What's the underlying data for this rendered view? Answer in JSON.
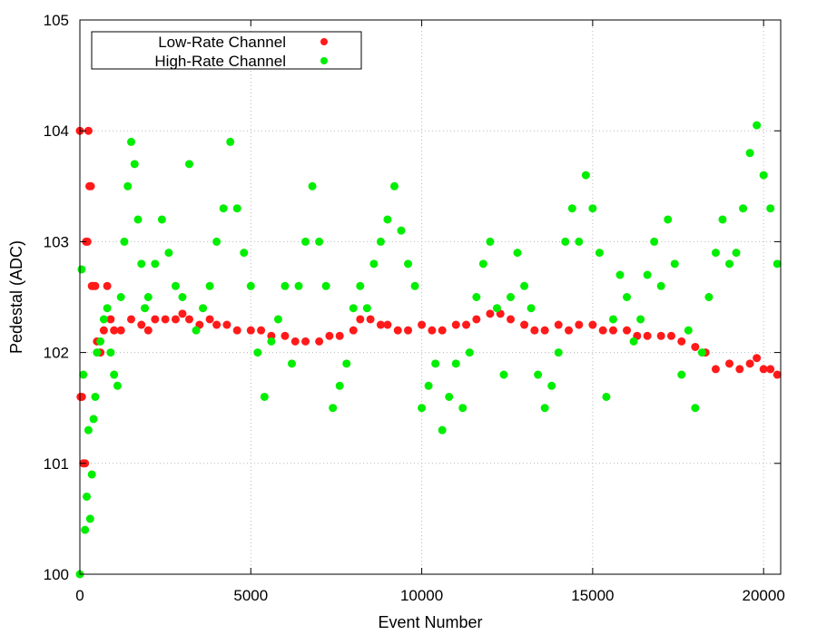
{
  "chart_data": {
    "type": "scatter",
    "xlabel": "Event Number",
    "ylabel": "Pedestal (ADC)",
    "xlim": [
      0,
      20500
    ],
    "ylim": [
      100,
      105
    ],
    "xticks": [
      "0",
      "5000",
      "10000",
      "15000",
      "20000"
    ],
    "yticks": [
      "100",
      "101",
      "102",
      "103",
      "104",
      "105"
    ],
    "grid": true,
    "legend_position": "top-left",
    "series": [
      {
        "name": "Low-Rate Channel",
        "color": "#ff1a1a",
        "points": [
          [
            0,
            104.0
          ],
          [
            20,
            101.6
          ],
          [
            60,
            101.6
          ],
          [
            100,
            101.0
          ],
          [
            150,
            101.0
          ],
          [
            180,
            103.0
          ],
          [
            220,
            103.0
          ],
          [
            250,
            104.0
          ],
          [
            280,
            103.5
          ],
          [
            320,
            103.5
          ],
          [
            350,
            102.6
          ],
          [
            400,
            102.6
          ],
          [
            450,
            102.6
          ],
          [
            500,
            102.1
          ],
          [
            600,
            102.0
          ],
          [
            700,
            102.2
          ],
          [
            800,
            102.6
          ],
          [
            900,
            102.3
          ],
          [
            1000,
            102.2
          ],
          [
            1200,
            102.2
          ],
          [
            1500,
            102.3
          ],
          [
            1800,
            102.25
          ],
          [
            2000,
            102.2
          ],
          [
            2200,
            102.3
          ],
          [
            2500,
            102.3
          ],
          [
            2800,
            102.3
          ],
          [
            3000,
            102.35
          ],
          [
            3200,
            102.3
          ],
          [
            3500,
            102.25
          ],
          [
            3800,
            102.3
          ],
          [
            4000,
            102.25
          ],
          [
            4300,
            102.25
          ],
          [
            4600,
            102.2
          ],
          [
            5000,
            102.2
          ],
          [
            5300,
            102.2
          ],
          [
            5600,
            102.15
          ],
          [
            6000,
            102.15
          ],
          [
            6300,
            102.1
          ],
          [
            6600,
            102.1
          ],
          [
            7000,
            102.1
          ],
          [
            7300,
            102.15
          ],
          [
            7600,
            102.15
          ],
          [
            8000,
            102.2
          ],
          [
            8200,
            102.3
          ],
          [
            8500,
            102.3
          ],
          [
            8800,
            102.25
          ],
          [
            9000,
            102.25
          ],
          [
            9300,
            102.2
          ],
          [
            9600,
            102.2
          ],
          [
            10000,
            102.25
          ],
          [
            10300,
            102.2
          ],
          [
            10600,
            102.2
          ],
          [
            11000,
            102.25
          ],
          [
            11300,
            102.25
          ],
          [
            11600,
            102.3
          ],
          [
            12000,
            102.35
          ],
          [
            12300,
            102.35
          ],
          [
            12600,
            102.3
          ],
          [
            13000,
            102.25
          ],
          [
            13300,
            102.2
          ],
          [
            13600,
            102.2
          ],
          [
            14000,
            102.25
          ],
          [
            14300,
            102.2
          ],
          [
            14600,
            102.25
          ],
          [
            15000,
            102.25
          ],
          [
            15300,
            102.2
          ],
          [
            15600,
            102.2
          ],
          [
            16000,
            102.2
          ],
          [
            16300,
            102.15
          ],
          [
            16600,
            102.15
          ],
          [
            17000,
            102.15
          ],
          [
            17300,
            102.15
          ],
          [
            17600,
            102.1
          ],
          [
            18000,
            102.05
          ],
          [
            18300,
            102.0
          ],
          [
            18600,
            101.85
          ],
          [
            19000,
            101.9
          ],
          [
            19300,
            101.85
          ],
          [
            19600,
            101.9
          ],
          [
            19800,
            101.95
          ],
          [
            20000,
            101.85
          ],
          [
            20200,
            101.85
          ],
          [
            20400,
            101.8
          ]
        ]
      },
      {
        "name": "High-Rate Channel",
        "color": "#00ee00",
        "points": [
          [
            0,
            100.0
          ],
          [
            50,
            102.75
          ],
          [
            100,
            101.8
          ],
          [
            150,
            100.4
          ],
          [
            200,
            100.7
          ],
          [
            250,
            101.3
          ],
          [
            300,
            100.5
          ],
          [
            350,
            100.9
          ],
          [
            400,
            101.4
          ],
          [
            450,
            101.6
          ],
          [
            500,
            102.0
          ],
          [
            600,
            102.1
          ],
          [
            700,
            102.3
          ],
          [
            800,
            102.4
          ],
          [
            900,
            102.0
          ],
          [
            1000,
            101.8
          ],
          [
            1100,
            101.7
          ],
          [
            1200,
            102.5
          ],
          [
            1300,
            103.0
          ],
          [
            1400,
            103.5
          ],
          [
            1500,
            103.9
          ],
          [
            1600,
            103.7
          ],
          [
            1700,
            103.2
          ],
          [
            1800,
            102.8
          ],
          [
            1900,
            102.4
          ],
          [
            2000,
            102.5
          ],
          [
            2200,
            102.8
          ],
          [
            2400,
            103.2
          ],
          [
            2600,
            102.9
          ],
          [
            2800,
            102.6
          ],
          [
            3000,
            102.5
          ],
          [
            3200,
            103.7
          ],
          [
            3400,
            102.2
          ],
          [
            3600,
            102.4
          ],
          [
            3800,
            102.6
          ],
          [
            4000,
            103.0
          ],
          [
            4200,
            103.3
          ],
          [
            4400,
            103.9
          ],
          [
            4600,
            103.3
          ],
          [
            4800,
            102.9
          ],
          [
            5000,
            102.6
          ],
          [
            5200,
            102.0
          ],
          [
            5400,
            101.6
          ],
          [
            5600,
            102.1
          ],
          [
            5800,
            102.3
          ],
          [
            6000,
            102.6
          ],
          [
            6200,
            101.9
          ],
          [
            6400,
            102.6
          ],
          [
            6600,
            103.0
          ],
          [
            6800,
            103.5
          ],
          [
            7000,
            103.0
          ],
          [
            7200,
            102.6
          ],
          [
            7400,
            101.5
          ],
          [
            7600,
            101.7
          ],
          [
            7800,
            101.9
          ],
          [
            8000,
            102.4
          ],
          [
            8200,
            102.6
          ],
          [
            8400,
            102.4
          ],
          [
            8600,
            102.8
          ],
          [
            8800,
            103.0
          ],
          [
            9000,
            103.2
          ],
          [
            9200,
            103.5
          ],
          [
            9400,
            103.1
          ],
          [
            9600,
            102.8
          ],
          [
            9800,
            102.6
          ],
          [
            10000,
            101.5
          ],
          [
            10200,
            101.7
          ],
          [
            10400,
            101.9
          ],
          [
            10600,
            101.3
          ],
          [
            10800,
            101.6
          ],
          [
            11000,
            101.9
          ],
          [
            11200,
            101.5
          ],
          [
            11400,
            102.0
          ],
          [
            11600,
            102.5
          ],
          [
            11800,
            102.8
          ],
          [
            12000,
            103.0
          ],
          [
            12200,
            102.4
          ],
          [
            12400,
            101.8
          ],
          [
            12600,
            102.5
          ],
          [
            12800,
            102.9
          ],
          [
            13000,
            102.6
          ],
          [
            13200,
            102.4
          ],
          [
            13400,
            101.8
          ],
          [
            13600,
            101.5
          ],
          [
            13800,
            101.7
          ],
          [
            14000,
            102.0
          ],
          [
            14200,
            103.0
          ],
          [
            14400,
            103.3
          ],
          [
            14600,
            103.0
          ],
          [
            14800,
            103.6
          ],
          [
            15000,
            103.3
          ],
          [
            15200,
            102.9
          ],
          [
            15400,
            101.6
          ],
          [
            15600,
            102.3
          ],
          [
            15800,
            102.7
          ],
          [
            16000,
            102.5
          ],
          [
            16200,
            102.1
          ],
          [
            16400,
            102.3
          ],
          [
            16600,
            102.7
          ],
          [
            16800,
            103.0
          ],
          [
            17000,
            102.6
          ],
          [
            17200,
            103.2
          ],
          [
            17400,
            102.8
          ],
          [
            17600,
            101.8
          ],
          [
            17800,
            102.2
          ],
          [
            18000,
            101.5
          ],
          [
            18200,
            102.0
          ],
          [
            18400,
            102.5
          ],
          [
            18600,
            102.9
          ],
          [
            18800,
            103.2
          ],
          [
            19000,
            102.8
          ],
          [
            19200,
            102.9
          ],
          [
            19400,
            103.3
          ],
          [
            19600,
            103.8
          ],
          [
            19800,
            104.05
          ],
          [
            20000,
            103.6
          ],
          [
            20200,
            103.3
          ],
          [
            20400,
            102.8
          ]
        ]
      }
    ]
  }
}
